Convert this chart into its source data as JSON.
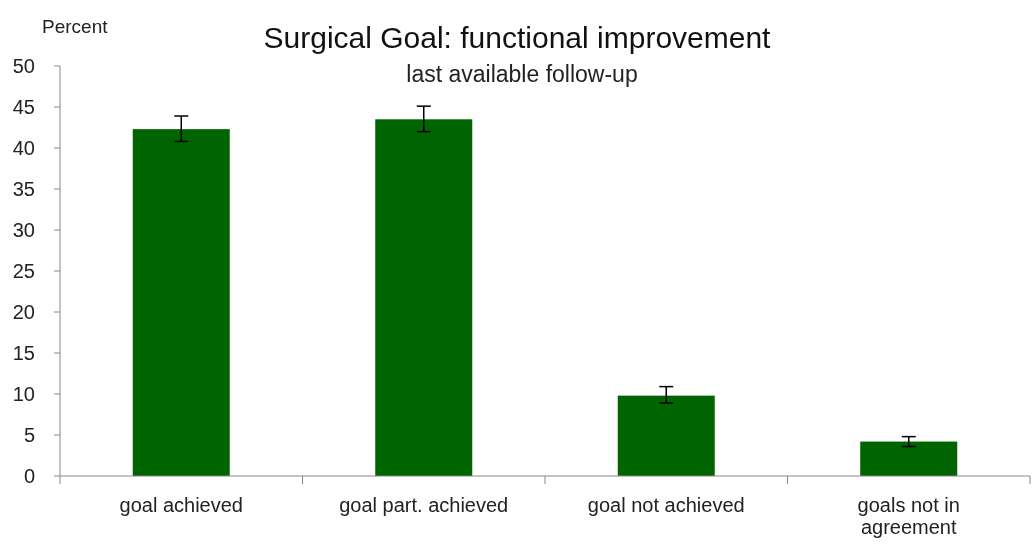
{
  "chart_data": {
    "type": "bar",
    "title": "Surgical Goal: functional improvement",
    "subtitle": "last available follow-up",
    "ylabel": "Percent",
    "categories": [
      "goal achieved",
      "goal part. achieved",
      "goal not achieved",
      "goals not in agreement"
    ],
    "values": [
      42.3,
      43.5,
      9.8,
      4.2
    ],
    "color": "#006400",
    "errors": [
      [
        40.8,
        43.9
      ],
      [
        42.0,
        45.1
      ],
      [
        8.9,
        10.9
      ],
      [
        3.6,
        4.8
      ]
    ],
    "ylim": [
      0,
      50
    ],
    "yticks": [
      0,
      5,
      10,
      15,
      20,
      25,
      30,
      35,
      40,
      45,
      50
    ]
  }
}
